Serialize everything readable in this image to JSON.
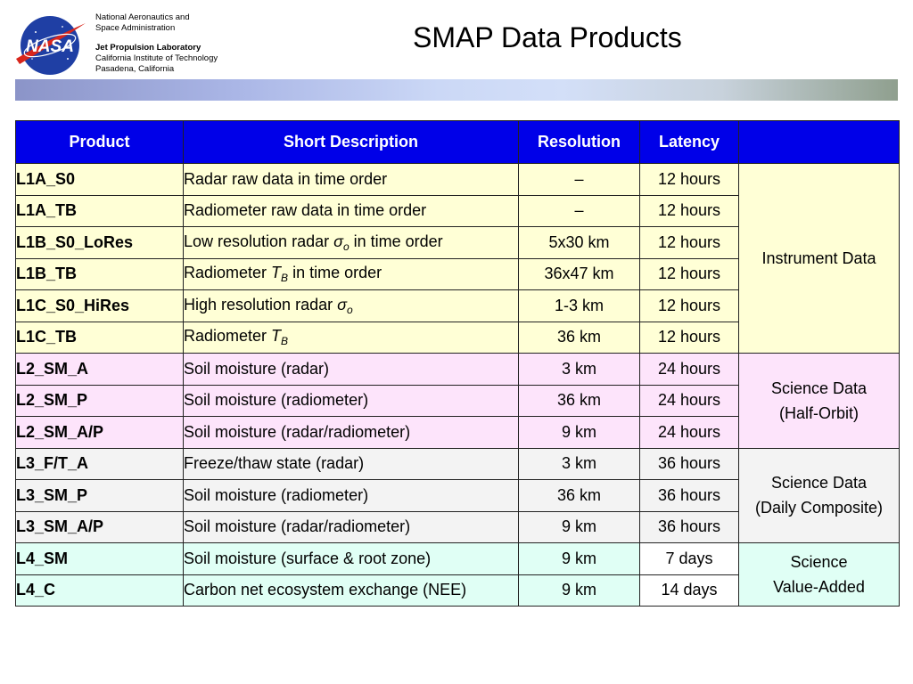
{
  "header": {
    "agency_line1": "National Aeronautics and",
    "agency_line2": "Space Administration",
    "lab_name": "Jet Propulsion Laboratory",
    "lab_line2": "California Institute of Technology",
    "lab_line3": "Pasadena, California",
    "title": "SMAP Data Products",
    "logo_text": "NASA"
  },
  "table": {
    "headers": [
      "Product",
      "Short Description",
      "Resolution",
      "Latency",
      ""
    ],
    "rows": [
      {
        "product": "L1A_S0",
        "desc": "Radar raw data in time order",
        "resolution": "–",
        "latency": "12 hours"
      },
      {
        "product": "L1A_TB",
        "desc": "Radiometer raw data in time order",
        "resolution": "–",
        "latency": "12 hours"
      },
      {
        "product": "L1B_S0_LoRes",
        "desc_pre": "Low resolution radar ",
        "desc_sym": "σ",
        "desc_sub": "o",
        "desc_post": " in time order",
        "resolution": "5x30 km",
        "latency": "12 hours"
      },
      {
        "product": "L1B_TB",
        "desc_pre": "Radiometer ",
        "desc_sym": "T",
        "desc_sub": "B",
        "desc_post": " in time order",
        "resolution": "36x47 km",
        "latency": "12 hours"
      },
      {
        "product": "L1C_S0_HiRes",
        "desc_pre": "High resolution radar ",
        "desc_sym": "σ",
        "desc_sub": "o",
        "desc_post": "",
        "resolution": "1-3 km",
        "latency": "12 hours"
      },
      {
        "product": "L1C_TB",
        "desc_pre": "Radiometer ",
        "desc_sym": "T",
        "desc_sub": "B",
        "desc_post": "",
        "resolution": "36 km",
        "latency": "12 hours"
      },
      {
        "product": "L2_SM_A",
        "desc": "Soil moisture (radar)",
        "resolution": "3 km",
        "latency": "24 hours"
      },
      {
        "product": "L2_SM_P",
        "desc": "Soil moisture (radiometer)",
        "resolution": "36 km",
        "latency": "24 hours"
      },
      {
        "product": "L2_SM_A/P",
        "desc": "Soil moisture (radar/radiometer)",
        "resolution": "9 km",
        "latency": "24 hours"
      },
      {
        "product": "L3_F/T_A",
        "desc": "Freeze/thaw state (radar)",
        "resolution": "3 km",
        "latency": "36 hours"
      },
      {
        "product": "L3_SM_P",
        "desc": "Soil moisture (radiometer)",
        "resolution": "36 km",
        "latency": "36 hours"
      },
      {
        "product": "L3_SM_A/P",
        "desc": "Soil moisture (radar/radiometer)",
        "resolution": "9 km",
        "latency": "36 hours"
      },
      {
        "product": "L4_SM",
        "desc": "Soil moisture (surface & root zone)",
        "resolution": "9 km",
        "latency": "7 days"
      },
      {
        "product": "L4_C",
        "desc": "Carbon net ecosystem exchange (NEE)",
        "resolution": "9 km",
        "latency": "14 days"
      }
    ],
    "groups": [
      {
        "line1": "Instrument Data",
        "line2": ""
      },
      {
        "line1": "Science Data",
        "line2": "(Half-Orbit)"
      },
      {
        "line1": "Science Data",
        "line2": "(Daily Composite)"
      },
      {
        "line1": "Science",
        "line2": "Value-Added"
      }
    ]
  },
  "colors": {
    "header_bg": "#0000e8",
    "instrument_bg": "#ffffd6",
    "half_orbit_bg": "#fde4fb",
    "daily_bg": "#f3f3f3",
    "value_added_bg": "#e0fff5"
  }
}
